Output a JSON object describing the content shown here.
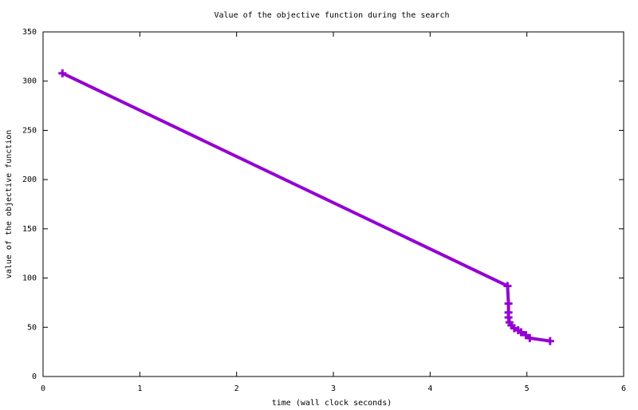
{
  "chart_data": {
    "type": "line",
    "title": "Value of the objective function during the search",
    "xlabel": "time (wall clock seconds)",
    "ylabel": "value of the objective function",
    "x": [
      0.2,
      4.8,
      4.81,
      4.81,
      4.81,
      4.82,
      4.84,
      4.87,
      4.91,
      4.94,
      4.99,
      5.03,
      5.24
    ],
    "series": [
      {
        "color": "#9400d3",
        "values": [
          308,
          92,
          74,
          65,
          60,
          55,
          52,
          49,
          47,
          45,
          42,
          39,
          36
        ]
      }
    ],
    "xlim": [
      0,
      6
    ],
    "xticks": [
      0,
      1,
      2,
      3,
      4,
      5,
      6
    ],
    "ylim": [
      0,
      350
    ],
    "yticks": [
      0,
      50,
      100,
      150,
      200,
      250,
      300,
      350
    ]
  }
}
